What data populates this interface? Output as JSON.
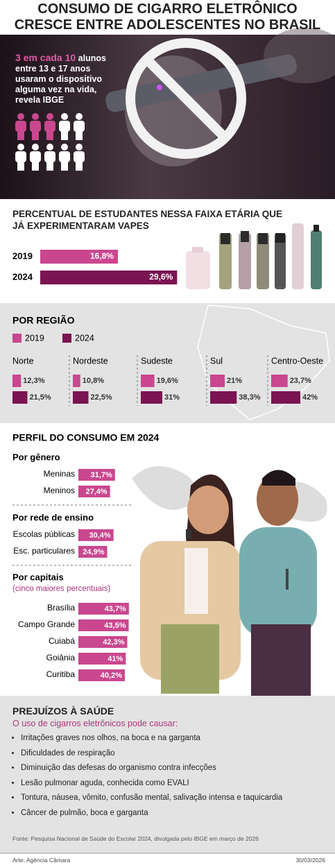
{
  "header": {
    "title": "CONSUMO DE CIGARRO ELETRÔNICO CRESCE ENTRE ADOLESCENTES NO BRASIL"
  },
  "hero": {
    "highlight": "3 em cada 10",
    "text": "alunos entre 13 e 17 anos usaram o dispositivo alguma vez na vida, revela IBGE"
  },
  "chart_data": [
    {
      "type": "bar",
      "title": "PERCENTUAL DE ESTUDANTES NESSA FAIXA ETÁRIA QUE JÁ EXPERIMENTARAM VAPES",
      "categories": [
        "2019",
        "2024"
      ],
      "values": [
        16.8,
        29.6
      ],
      "value_labels": [
        "16,8%",
        "29,6%"
      ],
      "colors": [
        "#c9478f",
        "#7b1453"
      ],
      "xlim": [
        0,
        30
      ]
    },
    {
      "type": "grouped-bar",
      "title": "POR REGIÃO",
      "categories": [
        "Norte",
        "Nordeste",
        "Sudeste",
        "Sul",
        "Centro-Oeste"
      ],
      "series": [
        {
          "name": "2019",
          "color": "#c9478f",
          "values": [
            12.3,
            10.8,
            19.6,
            21,
            23.7
          ],
          "value_labels": [
            "12,3%",
            "10,8%",
            "19,6%",
            "21%",
            "23,7%"
          ]
        },
        {
          "name": "2024",
          "color": "#7b1453",
          "values": [
            21.5,
            22.5,
            31,
            38.3,
            42
          ],
          "value_labels": [
            "21,5%",
            "22,5%",
            "31%",
            "38,3%",
            "42%"
          ]
        }
      ],
      "xlim": [
        0,
        80
      ]
    },
    {
      "type": "bar",
      "title": "Por gênero",
      "categories": [
        "Meninas",
        "Meninos"
      ],
      "values": [
        31.7,
        27.4
      ],
      "value_labels": [
        "31,7%",
        "27,4%"
      ],
      "color": "#c9478f",
      "xlim": [
        0,
        45
      ]
    },
    {
      "type": "bar",
      "title": "Por rede de ensino",
      "categories": [
        "Escolas públicas",
        "Esc. particulares"
      ],
      "values": [
        30.4,
        24.9
      ],
      "value_labels": [
        "30,4%",
        "24,9%"
      ],
      "color": "#c9478f",
      "xlim": [
        0,
        45
      ]
    },
    {
      "type": "bar",
      "title": "Por capitais",
      "subtitle": "(cinco maiores percentuais)",
      "categories": [
        "Brasília",
        "Campo Grande",
        "Cuiabá",
        "Goiânia",
        "Curitiba"
      ],
      "values": [
        43.7,
        43.5,
        42.3,
        41,
        40.2
      ],
      "value_labels": [
        "43,7%",
        "43,5%",
        "42,3%",
        "41%",
        "40,2%"
      ],
      "color": "#c9478f",
      "xlim": [
        0,
        45
      ]
    }
  ],
  "profile": {
    "heading": "PERFIL DO CONSUMO EM 2024"
  },
  "health": {
    "title": "PREJUÍZOS À SAÚDE",
    "subtitle": "O uso de cigarros eletrônicos pode causar:",
    "items": [
      "Irritações graves nos olhos, na boca e na garganta",
      "Dificuldades de respiração",
      "Diminuição das defesas do organismo contra infecções",
      "Lesão pulmonar aguda, conhecida como EVALI",
      "Tontura, náusea, vômito, confusão mental, salivação intensa e taquicardia",
      "Câncer de pulmão, boca e garganta"
    ]
  },
  "footer": {
    "source": "Fonte: Pesquisa Nacional de Saúde do Escolar 2024, divulgada pelo IBGE em março de 2026",
    "credit": "Arte: Agência Câmara",
    "date": "30/03/2026"
  }
}
